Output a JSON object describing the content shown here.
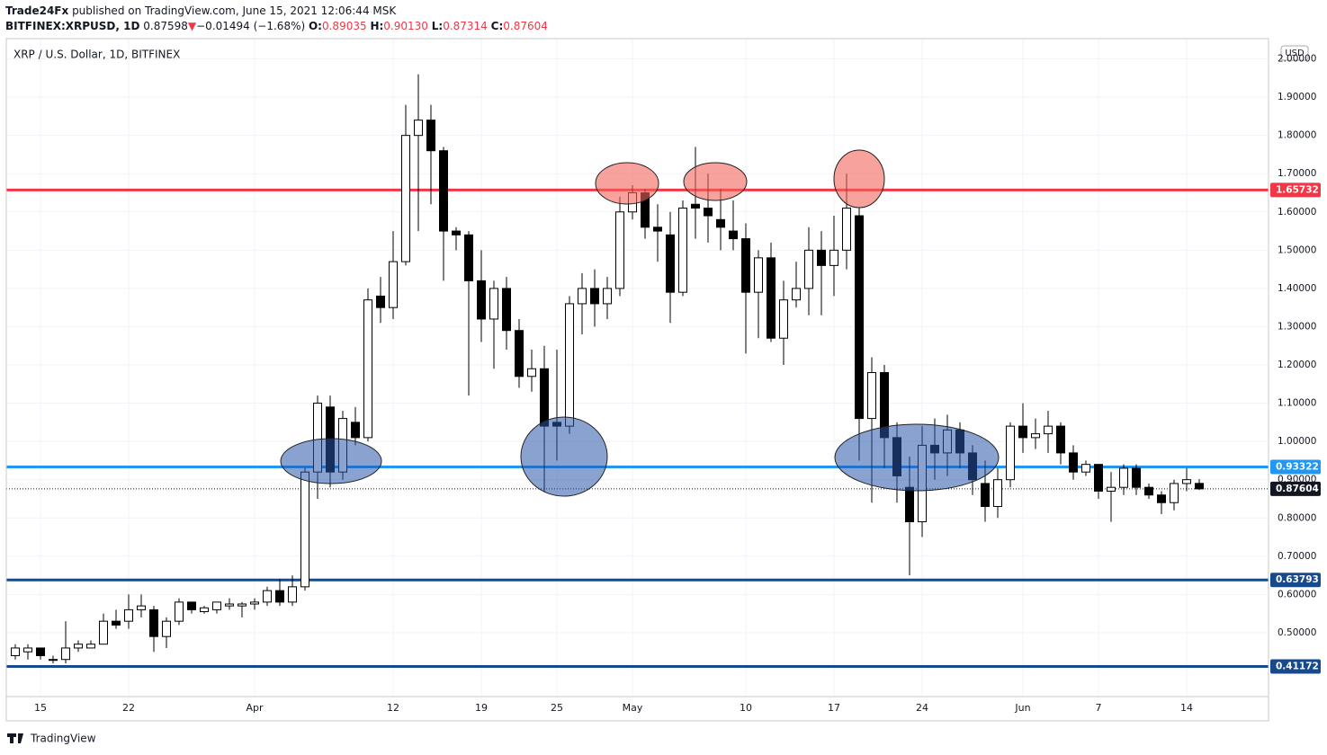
{
  "header": {
    "author": "Trade24Fx",
    "published": " published on TradingView.com, June 15, 2021 12:06:44 MSK",
    "symbol": "BITFINEX:XRPUSD, 1D",
    "last": "0.87598",
    "arrow": "▼",
    "change": "−0.01494 (−1.68%)",
    "o_label": "O:",
    "o": "0.89035",
    "h_label": "H:",
    "h": "0.90130",
    "l_label": "L:",
    "l": "0.87314",
    "c_label": "C:",
    "c": "0.87604"
  },
  "footer": {
    "brand": "TradingView"
  },
  "chart_data": {
    "type": "candlestick",
    "title": "XRP / U.S. Dollar, 1D, BITFINEX",
    "currency": "USD",
    "x": [
      "2021-03-13",
      "2021-03-14",
      "2021-03-15",
      "2021-03-16",
      "2021-03-17",
      "2021-03-18",
      "2021-03-19",
      "2021-03-20",
      "2021-03-21",
      "2021-03-22",
      "2021-03-23",
      "2021-03-24",
      "2021-03-25",
      "2021-03-26",
      "2021-03-27",
      "2021-03-28",
      "2021-03-29",
      "2021-03-30",
      "2021-03-31",
      "2021-04-01",
      "2021-04-02",
      "2021-04-03",
      "2021-04-04",
      "2021-04-05",
      "2021-04-06",
      "2021-04-07",
      "2021-04-08",
      "2021-04-09",
      "2021-04-10",
      "2021-04-11",
      "2021-04-12",
      "2021-04-13",
      "2021-04-14",
      "2021-04-15",
      "2021-04-16",
      "2021-04-17",
      "2021-04-18",
      "2021-04-19",
      "2021-04-20",
      "2021-04-21",
      "2021-04-22",
      "2021-04-23",
      "2021-04-24",
      "2021-04-25",
      "2021-04-26",
      "2021-04-27",
      "2021-04-28",
      "2021-04-29",
      "2021-04-30",
      "2021-05-01",
      "2021-05-02",
      "2021-05-03",
      "2021-05-04",
      "2021-05-05",
      "2021-05-06",
      "2021-05-07",
      "2021-05-08",
      "2021-05-09",
      "2021-05-10",
      "2021-05-11",
      "2021-05-12",
      "2021-05-13",
      "2021-05-14",
      "2021-05-15",
      "2021-05-16",
      "2021-05-17",
      "2021-05-18",
      "2021-05-19",
      "2021-05-20",
      "2021-05-21",
      "2021-05-22",
      "2021-05-23",
      "2021-05-24",
      "2021-05-25",
      "2021-05-26",
      "2021-05-27",
      "2021-05-28",
      "2021-05-29",
      "2021-05-30",
      "2021-05-31",
      "2021-06-01",
      "2021-06-02",
      "2021-06-03",
      "2021-06-04",
      "2021-06-05",
      "2021-06-06",
      "2021-06-07",
      "2021-06-08",
      "2021-06-09",
      "2021-06-10",
      "2021-06-11",
      "2021-06-12",
      "2021-06-13",
      "2021-06-14",
      "2021-06-15"
    ],
    "open": [
      0.44,
      0.45,
      0.46,
      0.43,
      0.43,
      0.46,
      0.46,
      0.47,
      0.53,
      0.53,
      0.56,
      0.56,
      0.49,
      0.53,
      0.58,
      0.555,
      0.56,
      0.57,
      0.57,
      0.575,
      0.58,
      0.61,
      0.58,
      0.62,
      0.92,
      1.09,
      0.92,
      1.05,
      1.01,
      1.38,
      1.35,
      1.47,
      1.8,
      1.84,
      1.76,
      1.55,
      1.54,
      1.42,
      1.32,
      1.4,
      1.29,
      1.17,
      1.19,
      1.05,
      1.04,
      1.36,
      1.4,
      1.36,
      1.4,
      1.6,
      1.65,
      1.56,
      1.54,
      1.39,
      1.62,
      1.61,
      1.58,
      1.55,
      1.53,
      1.39,
      1.48,
      1.27,
      1.37,
      1.4,
      1.5,
      1.46,
      1.5,
      1.59,
      1.06,
      1.18,
      1.01,
      0.88,
      0.79,
      0.99,
      0.97,
      1.03,
      0.97,
      0.89,
      0.83,
      0.9,
      1.04,
      1.01,
      1.02,
      1.04,
      0.97,
      0.92,
      0.94,
      0.87,
      0.88,
      0.93,
      0.88,
      0.86,
      0.84,
      0.89,
      0.89035
    ],
    "high": [
      0.47,
      0.47,
      0.46,
      0.44,
      0.53,
      0.48,
      0.48,
      0.55,
      0.56,
      0.6,
      0.6,
      0.57,
      0.54,
      0.59,
      0.58,
      0.57,
      0.58,
      0.59,
      0.58,
      0.59,
      0.62,
      0.64,
      0.65,
      0.93,
      1.12,
      1.12,
      1.08,
      1.09,
      1.4,
      1.43,
      1.55,
      1.88,
      1.96,
      1.88,
      1.77,
      1.56,
      1.55,
      1.5,
      1.42,
      1.43,
      1.32,
      1.24,
      1.25,
      1.24,
      1.38,
      1.44,
      1.45,
      1.43,
      1.64,
      1.67,
      1.66,
      1.62,
      1.6,
      1.63,
      1.77,
      1.7,
      1.66,
      1.63,
      1.57,
      1.5,
      1.52,
      1.42,
      1.47,
      1.56,
      1.55,
      1.59,
      1.7,
      1.61,
      1.22,
      1.2,
      1.05,
      0.96,
      1.04,
      1.06,
      1.07,
      1.05,
      0.99,
      0.95,
      0.93,
      1.05,
      1.1,
      1.06,
      1.08,
      1.05,
      0.99,
      0.95,
      0.94,
      0.92,
      0.94,
      0.94,
      0.89,
      0.87,
      0.9,
      0.93,
      0.9013
    ],
    "low": [
      0.43,
      0.43,
      0.43,
      0.42,
      0.42,
      0.45,
      0.46,
      0.47,
      0.51,
      0.51,
      0.54,
      0.45,
      0.46,
      0.52,
      0.55,
      0.55,
      0.55,
      0.56,
      0.54,
      0.56,
      0.57,
      0.57,
      0.57,
      0.61,
      0.85,
      0.88,
      0.9,
      0.99,
      1.0,
      1.31,
      1.32,
      1.46,
      1.55,
      1.62,
      1.42,
      1.5,
      1.12,
      1.26,
      1.19,
      1.24,
      1.14,
      1.13,
      0.87,
      0.95,
      1.02,
      1.28,
      1.3,
      1.32,
      1.38,
      1.58,
      1.53,
      1.47,
      1.31,
      1.38,
      1.53,
      1.52,
      1.5,
      1.5,
      1.23,
      1.27,
      1.26,
      1.2,
      1.35,
      1.33,
      1.33,
      1.38,
      1.45,
      0.95,
      0.84,
      0.93,
      0.84,
      0.65,
      0.75,
      0.9,
      0.91,
      0.93,
      0.86,
      0.79,
      0.8,
      0.88,
      0.97,
      0.98,
      0.97,
      0.94,
      0.9,
      0.91,
      0.85,
      0.79,
      0.86,
      0.86,
      0.85,
      0.81,
      0.82,
      0.87,
      0.87314
    ],
    "close": [
      0.46,
      0.46,
      0.44,
      0.43,
      0.46,
      0.47,
      0.47,
      0.53,
      0.52,
      0.56,
      0.57,
      0.49,
      0.53,
      0.58,
      0.56,
      0.565,
      0.58,
      0.575,
      0.575,
      0.58,
      0.61,
      0.58,
      0.62,
      0.92,
      1.1,
      0.92,
      1.06,
      1.01,
      1.37,
      1.35,
      1.47,
      1.8,
      1.84,
      1.76,
      1.55,
      1.54,
      1.42,
      1.32,
      1.4,
      1.29,
      1.17,
      1.19,
      1.04,
      1.04,
      1.36,
      1.4,
      1.36,
      1.4,
      1.6,
      1.65,
      1.56,
      1.55,
      1.39,
      1.61,
      1.61,
      1.59,
      1.56,
      1.53,
      1.39,
      1.48,
      1.27,
      1.37,
      1.4,
      1.5,
      1.46,
      1.5,
      1.61,
      1.06,
      1.18,
      1.01,
      0.91,
      0.79,
      0.99,
      0.97,
      1.03,
      0.97,
      0.9,
      0.83,
      0.9,
      1.04,
      1.01,
      1.02,
      1.04,
      0.97,
      0.92,
      0.94,
      0.87,
      0.88,
      0.93,
      0.88,
      0.86,
      0.84,
      0.89,
      0.9,
      0.87604
    ],
    "levels": [
      {
        "value": 1.65732,
        "color": "#f23645",
        "style": "solid"
      },
      {
        "value": 0.93322,
        "color": "#2196f3",
        "style": "solid"
      },
      {
        "value": 0.87604,
        "color": "#131722",
        "style": "dotted"
      },
      {
        "value": 0.63793,
        "color": "#174a8c",
        "style": "solid"
      },
      {
        "value": 0.41172,
        "color": "#174a8c",
        "style": "solid"
      }
    ],
    "ylim": [
      0.333,
      2.053
    ],
    "yticks": [
      {
        "value": 0.5,
        "label": "0.50000"
      },
      {
        "value": 0.6,
        "label": "0.60000"
      },
      {
        "value": 0.7,
        "label": "0.70000"
      },
      {
        "value": 0.8,
        "label": "0.80000"
      },
      {
        "value": 0.9,
        "label": "0.90000"
      },
      {
        "value": 1.0,
        "label": "1.00000"
      },
      {
        "value": 1.1,
        "label": "1.10000"
      },
      {
        "value": 1.2,
        "label": "1.20000"
      },
      {
        "value": 1.3,
        "label": "1.30000"
      },
      {
        "value": 1.4,
        "label": "1.40000"
      },
      {
        "value": 1.5,
        "label": "1.50000"
      },
      {
        "value": 1.6,
        "label": "1.60000"
      },
      {
        "value": 1.7,
        "label": "1.70000"
      },
      {
        "value": 1.8,
        "label": "1.80000"
      },
      {
        "value": 1.9,
        "label": "1.90000"
      },
      {
        "value": 2.0,
        "label": "2.00000"
      }
    ],
    "xticks": [
      {
        "value": "2021-03-15",
        "label": "15"
      },
      {
        "value": "2021-03-22",
        "label": "22"
      },
      {
        "value": "2021-04-01",
        "label": "Apr"
      },
      {
        "value": "2021-04-12",
        "label": "12"
      },
      {
        "value": "2021-04-19",
        "label": "19"
      },
      {
        "value": "2021-04-25",
        "label": "25"
      },
      {
        "value": "2021-05-01",
        "label": "May"
      },
      {
        "value": "2021-05-10",
        "label": "10"
      },
      {
        "value": "2021-05-17",
        "label": "17"
      },
      {
        "value": "2021-05-24",
        "label": "24"
      },
      {
        "value": "2021-06-01",
        "label": "Jun"
      },
      {
        "value": "2021-06-07",
        "label": "7"
      },
      {
        "value": "2021-06-14",
        "label": "14"
      }
    ],
    "grid": true,
    "up_color": "#ffffff",
    "down_color": "#000000"
  }
}
